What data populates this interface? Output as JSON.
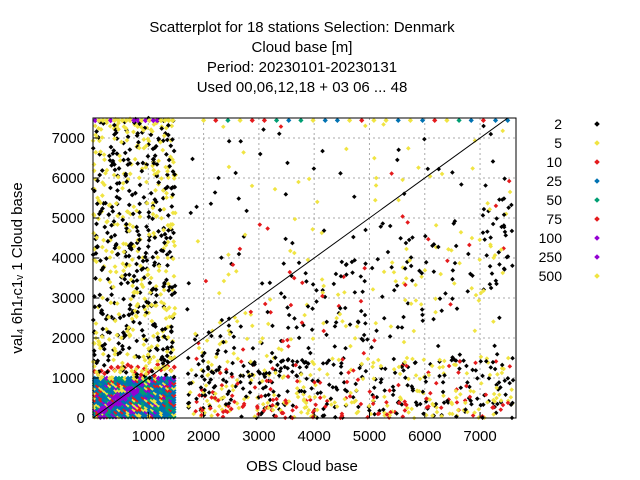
{
  "chart_data": {
    "type": "scatter",
    "title_lines": [
      "Scatterplot for   18 stations Selection: Denmark",
      "Cloud base [m]",
      "Period: 20230101-20230131",
      "Used  00,06,12,18  + 03 06 ... 48"
    ],
    "xlabel": "OBS Cloud base",
    "ylabel": "val₄ 6h1ᵣc1ᵥ 1 Cloud base",
    "xlim": [
      0,
      7650
    ],
    "ylim": [
      0,
      7500
    ],
    "x_ticks": [
      1000,
      2000,
      3000,
      4000,
      5000,
      6000,
      7000
    ],
    "y_ticks": [
      0,
      1000,
      2000,
      3000,
      4000,
      5000,
      6000,
      7000
    ],
    "grid": true,
    "diagonal_line": true,
    "legend_position": "right",
    "series": [
      {
        "name": "2",
        "color": "#000000"
      },
      {
        "name": "5",
        "color": "#f0e442"
      },
      {
        "name": "10",
        "color": "#e41a1c"
      },
      {
        "name": "25",
        "color": "#0072b2"
      },
      {
        "name": "50",
        "color": "#009e73"
      },
      {
        "name": "75",
        "color": "#e41a1c"
      },
      {
        "name": "100",
        "color": "#9400d3"
      },
      {
        "name": "250",
        "color": "#9400d3"
      },
      {
        "name": "500",
        "color": "#f0e442"
      }
    ]
  }
}
